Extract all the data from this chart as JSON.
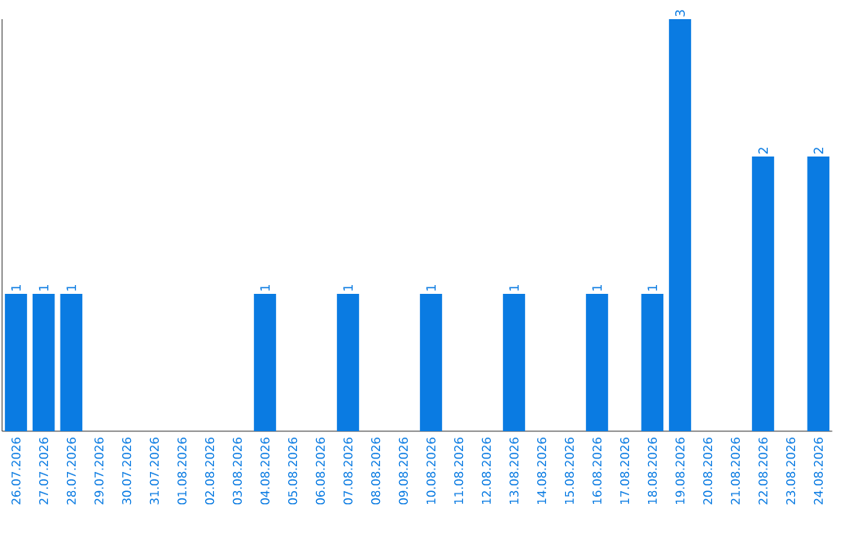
{
  "chart_data": {
    "type": "bar",
    "categories": [
      "26.07.2026",
      "27.07.2026",
      "28.07.2026",
      "29.07.2026",
      "30.07.2026",
      "31.07.2026",
      "01.08.2026",
      "02.08.2026",
      "03.08.2026",
      "04.08.2026",
      "05.08.2026",
      "06.08.2026",
      "07.08.2026",
      "08.08.2026",
      "09.08.2026",
      "10.08.2026",
      "11.08.2026",
      "12.08.2026",
      "13.08.2026",
      "14.08.2026",
      "15.08.2026",
      "16.08.2026",
      "17.08.2026",
      "18.08.2026",
      "19.08.2026",
      "20.08.2026",
      "21.08.2026",
      "22.08.2026",
      "23.08.2026",
      "24.08.2026"
    ],
    "values": [
      1,
      1,
      1,
      0,
      0,
      0,
      0,
      0,
      0,
      1,
      0,
      0,
      1,
      0,
      0,
      1,
      0,
      0,
      1,
      0,
      0,
      1,
      0,
      1,
      3,
      0,
      0,
      2,
      0,
      2
    ],
    "value_labels": [
      "1",
      "1",
      "1",
      null,
      null,
      null,
      null,
      null,
      null,
      "1",
      null,
      null,
      "1",
      null,
      null,
      "1",
      null,
      null,
      "1",
      null,
      null,
      "1",
      null,
      "1",
      "3",
      null,
      null,
      "2",
      null,
      "2"
    ],
    "color": "#0a7be2",
    "ylim": [
      0,
      3
    ],
    "tick_labels": "x"
  }
}
